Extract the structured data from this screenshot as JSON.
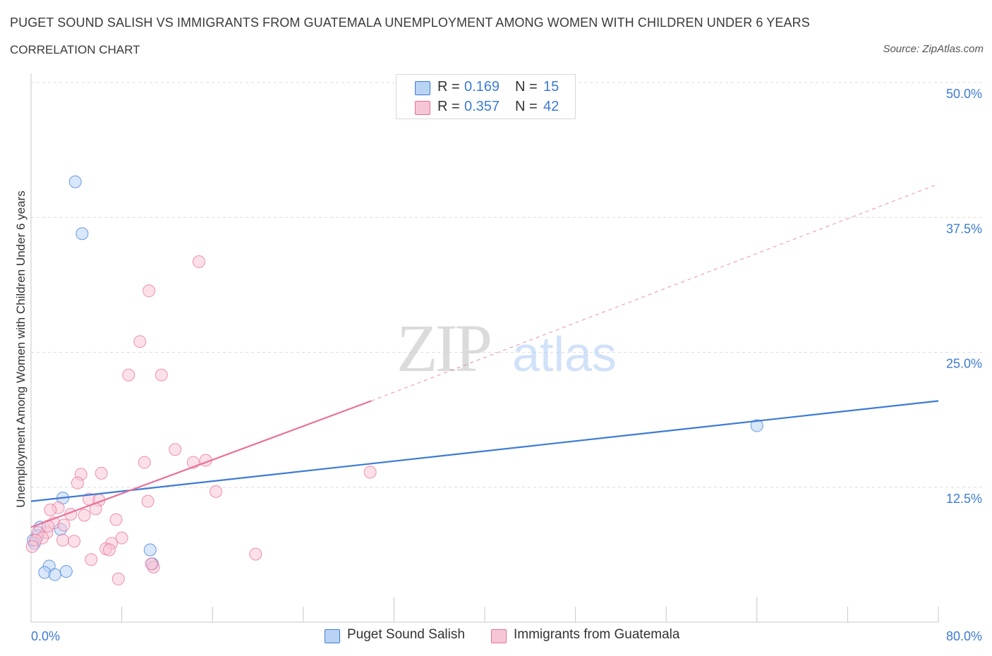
{
  "header": {
    "title": "PUGET SOUND SALISH VS IMMIGRANTS FROM GUATEMALA UNEMPLOYMENT AMONG WOMEN WITH CHILDREN UNDER 6 YEARS",
    "subtitle": "CORRELATION CHART",
    "source": "Source: ZipAtlas.com"
  },
  "colors": {
    "blue": "#3d7bd4",
    "blue_fill": "#b9d3f5",
    "pink": "#e8709a",
    "pink_fill": "#f7c6d6",
    "grid": "#dcdcdc",
    "tick_label": "#3d7bd4"
  },
  "stats_legend": [
    {
      "r_label": "R =",
      "r_value": "0.169",
      "n_label": "N =",
      "n_value": "15"
    },
    {
      "r_label": "R =",
      "r_value": "0.357",
      "n_label": "N =",
      "n_value": "42"
    }
  ],
  "watermark": {
    "part1": "ZIP",
    "part2": "atlas"
  },
  "chart_data": {
    "type": "scatter",
    "title": "PUGET SOUND SALISH VS IMMIGRANTS FROM GUATEMALA UNEMPLOYMENT AMONG WOMEN WITH CHILDREN UNDER 6 YEARS",
    "xlabel": "",
    "ylabel": "Unemployment Among Women with Children Under 6 years",
    "xlim": [
      0,
      80
    ],
    "ylim": [
      0,
      50
    ],
    "x_tick_labels": [
      "0.0%",
      "80.0%"
    ],
    "y_ticks": [
      12.5,
      25.0,
      37.5,
      50.0
    ],
    "y_tick_labels": [
      "12.5%",
      "25.0%",
      "37.5%",
      "50.0%"
    ],
    "grid": true,
    "legend_position": "bottom-center",
    "series": [
      {
        "name": "Puget Sound Salish",
        "color": "#3d7bd4",
        "trend": {
          "x": [
            0,
            80
          ],
          "y": [
            11.2,
            20.5
          ],
          "style": "solid"
        },
        "points": [
          {
            "x": 3.9,
            "y": 40.8
          },
          {
            "x": 4.5,
            "y": 36.0
          },
          {
            "x": 2.8,
            "y": 11.5
          },
          {
            "x": 0.8,
            "y": 8.8
          },
          {
            "x": 2.6,
            "y": 8.6
          },
          {
            "x": 0.6,
            "y": 8.0
          },
          {
            "x": 0.3,
            "y": 7.3
          },
          {
            "x": 1.6,
            "y": 5.2
          },
          {
            "x": 1.2,
            "y": 4.6
          },
          {
            "x": 2.1,
            "y": 4.4
          },
          {
            "x": 3.1,
            "y": 4.7
          },
          {
            "x": 10.5,
            "y": 6.7
          },
          {
            "x": 10.7,
            "y": 5.4
          },
          {
            "x": 64.0,
            "y": 18.2
          },
          {
            "x": 0.2,
            "y": 7.6
          }
        ]
      },
      {
        "name": "Immigrants from Guatemala",
        "color": "#e8709a",
        "trend": {
          "x": [
            0,
            30
          ],
          "y": [
            8.8,
            20.5
          ],
          "style": "solid"
        },
        "trend_extension": {
          "x": [
            30,
            80
          ],
          "y": [
            20.5,
            40.6
          ],
          "style": "dashed"
        },
        "points": [
          {
            "x": 14.8,
            "y": 33.4
          },
          {
            "x": 10.4,
            "y": 30.7
          },
          {
            "x": 9.6,
            "y": 26.0
          },
          {
            "x": 8.6,
            "y": 22.9
          },
          {
            "x": 11.5,
            "y": 22.9
          },
          {
            "x": 12.7,
            "y": 16.0
          },
          {
            "x": 10.0,
            "y": 14.8
          },
          {
            "x": 14.3,
            "y": 14.8
          },
          {
            "x": 15.4,
            "y": 15.0
          },
          {
            "x": 4.4,
            "y": 13.7
          },
          {
            "x": 6.2,
            "y": 13.8
          },
          {
            "x": 4.1,
            "y": 12.9
          },
          {
            "x": 16.3,
            "y": 12.1
          },
          {
            "x": 5.1,
            "y": 11.4
          },
          {
            "x": 6.0,
            "y": 11.3
          },
          {
            "x": 10.3,
            "y": 11.2
          },
          {
            "x": 2.4,
            "y": 10.6
          },
          {
            "x": 1.7,
            "y": 10.4
          },
          {
            "x": 5.7,
            "y": 10.5
          },
          {
            "x": 3.5,
            "y": 10.0
          },
          {
            "x": 4.7,
            "y": 9.9
          },
          {
            "x": 7.5,
            "y": 9.5
          },
          {
            "x": 2.0,
            "y": 9.2
          },
          {
            "x": 2.9,
            "y": 9.0
          },
          {
            "x": 1.4,
            "y": 8.3
          },
          {
            "x": 0.6,
            "y": 8.3
          },
          {
            "x": 1.0,
            "y": 7.8
          },
          {
            "x": 2.8,
            "y": 7.6
          },
          {
            "x": 3.8,
            "y": 7.5
          },
          {
            "x": 8.0,
            "y": 7.8
          },
          {
            "x": 7.1,
            "y": 7.3
          },
          {
            "x": 6.6,
            "y": 6.8
          },
          {
            "x": 6.9,
            "y": 6.7
          },
          {
            "x": 5.3,
            "y": 5.8
          },
          {
            "x": 19.8,
            "y": 6.3
          },
          {
            "x": 10.8,
            "y": 5.1
          },
          {
            "x": 10.6,
            "y": 5.4
          },
          {
            "x": 7.7,
            "y": 4.0
          },
          {
            "x": 29.9,
            "y": 13.9
          },
          {
            "x": 0.4,
            "y": 7.6
          },
          {
            "x": 1.5,
            "y": 8.9
          },
          {
            "x": 0.1,
            "y": 7.0
          }
        ]
      }
    ]
  }
}
